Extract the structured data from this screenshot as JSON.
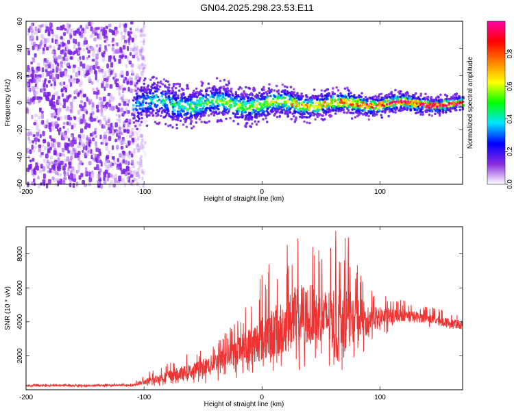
{
  "figure": {
    "title": "GN04.2025.298.23.53.E11"
  },
  "chart_data": [
    {
      "type": "heatmap",
      "title": "GN04.2025.298.23.53.E11",
      "xlabel": "Height of straight line (km)",
      "ylabel": "Frequency (Hz)",
      "xlim": [
        -200,
        170
      ],
      "ylim": [
        -60,
        60
      ],
      "xticks": [
        -200,
        -100,
        0,
        100
      ],
      "yticks": [
        -60,
        -40,
        -20,
        0,
        20,
        40,
        60
      ],
      "colorbar": {
        "label": "Normalized spectral amplitude",
        "range": [
          0,
          1
        ],
        "ticks": [
          "0.0",
          "0.2",
          "0.4",
          "0.6",
          "0.8"
        ],
        "tick_values": [
          0.0,
          0.2,
          0.4,
          0.6,
          0.8
        ],
        "colors": [
          "#ffffff",
          "#8a2be2",
          "#0000ff",
          "#00e5ff",
          "#00ff00",
          "#ffff00",
          "#ff8000",
          "#ff0000",
          "#ff00aa"
        ]
      },
      "regions": [
        {
          "name": "noise",
          "x_range": [
            -200,
            -110
          ],
          "freq_range": [
            -60,
            60
          ],
          "amplitude": 0.1
        },
        {
          "name": "signal",
          "x_range": [
            -110,
            170
          ],
          "freq_center": 0,
          "freq_halfwidth_start": 12,
          "freq_halfwidth_end": 4,
          "amplitude_start": 0.2,
          "amplitude_end": 0.9
        }
      ]
    },
    {
      "type": "line",
      "xlabel": "Height of straight line (km)",
      "ylabel": "SNR (10 * v/v)",
      "xlim": [
        -200,
        170
      ],
      "ylim": [
        0,
        9600
      ],
      "xticks": [
        -200,
        -100,
        0,
        100
      ],
      "yticks": [
        2000,
        4000,
        6000,
        8000
      ],
      "color": "#ee3333",
      "series": [
        {
          "name": "SNR",
          "x": [
            -200,
            -150,
            -110,
            -100,
            -80,
            -60,
            -40,
            -20,
            0,
            20,
            30,
            40,
            50,
            60,
            70,
            80,
            90,
            100,
            120,
            140,
            170
          ],
          "mean": [
            250,
            250,
            260,
            450,
            800,
            1100,
            1600,
            2300,
            3000,
            3800,
            4300,
            4500,
            4300,
            4200,
            4300,
            4100,
            4200,
            4300,
            4400,
            4200,
            3800
          ],
          "max": [
            350,
            350,
            380,
            900,
            1700,
            2200,
            2800,
            4300,
            7000,
            8500,
            9500,
            9400,
            8200,
            9300,
            9600,
            7800,
            6800,
            5600,
            5300,
            4900,
            4600
          ],
          "min": [
            150,
            150,
            160,
            200,
            250,
            300,
            400,
            700,
            1000,
            1200,
            800,
            1400,
            1600,
            1000,
            1200,
            2000,
            2300,
            3100,
            3700,
            3700,
            3500
          ]
        }
      ]
    }
  ]
}
